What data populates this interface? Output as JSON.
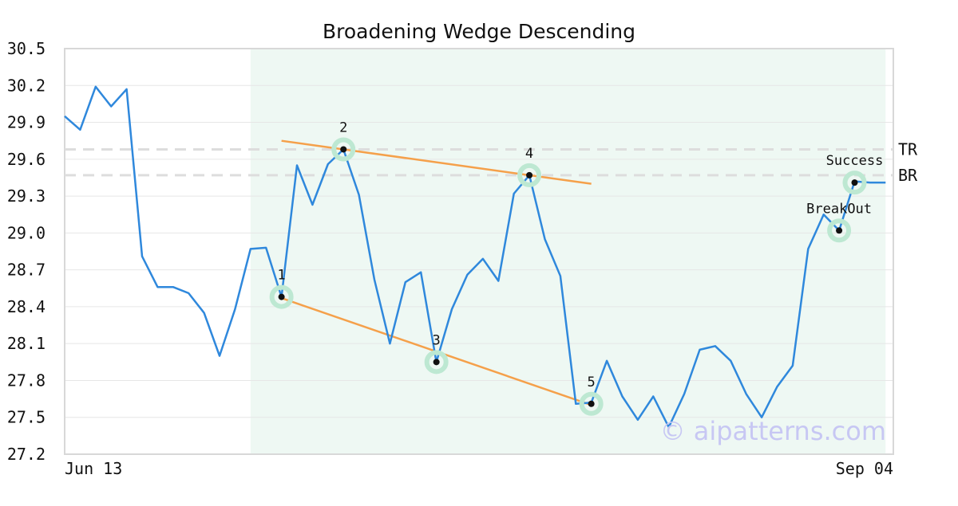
{
  "chart_data": {
    "type": "line",
    "title": "Broadening Wedge Descending",
    "xlabel": "",
    "ylabel": "",
    "ylim": [
      27.2,
      30.5
    ],
    "yticks": [
      "30.5",
      "30.2",
      "29.9",
      "29.6",
      "29.3",
      "29.0",
      "28.7",
      "28.4",
      "28.1",
      "27.8",
      "27.5",
      "27.2"
    ],
    "x_tick_labels": [
      "Jun 13",
      "Sep 04"
    ],
    "grid": "horizontal",
    "series": [
      {
        "values": [
          29.95,
          29.84,
          30.19,
          30.03,
          30.17,
          28.81,
          28.56,
          28.56,
          28.51,
          28.35,
          28.0,
          28.38,
          28.87,
          28.88,
          28.48,
          29.55,
          29.23,
          29.56,
          29.68,
          29.31,
          28.62,
          28.1,
          28.6,
          28.68,
          27.95,
          28.38,
          28.66,
          28.79,
          28.61,
          29.32,
          29.47,
          28.95,
          28.65,
          27.61,
          27.62,
          27.96,
          27.67,
          27.48,
          27.67,
          27.42,
          27.69,
          28.05,
          28.08,
          27.96,
          27.69,
          27.5,
          27.75,
          27.92,
          28.87,
          29.15,
          29.02,
          29.42,
          29.41,
          29.41
        ],
        "color": "#2f88dc"
      }
    ],
    "pattern_lines": [
      {
        "from": [
          14,
          29.75
        ],
        "to": [
          34,
          29.4
        ],
        "color": "#f5a04a"
      },
      {
        "from": [
          14,
          28.47
        ],
        "to": [
          34,
          27.6
        ],
        "color": "#f5a04a"
      }
    ],
    "reference_lines": [
      {
        "label": "TR",
        "value": 29.68
      },
      {
        "label": "BR",
        "value": 29.47
      }
    ],
    "highlight_region": {
      "from": 12,
      "to": 53,
      "color": "#eef8f3"
    },
    "markers": [
      {
        "label": "1",
        "x": 14,
        "y": 28.48
      },
      {
        "label": "2",
        "x": 18,
        "y": 29.68
      },
      {
        "label": "3",
        "x": 24,
        "y": 27.95
      },
      {
        "label": "4",
        "x": 30,
        "y": 29.47
      },
      {
        "label": "5",
        "x": 34,
        "y": 27.61
      },
      {
        "label": "BreakOut",
        "x": 50,
        "y": 29.02
      },
      {
        "label": "Success",
        "x": 51,
        "y": 29.41
      }
    ]
  },
  "watermark": "© aipatterns.com",
  "colors": {
    "line": "#2f88dc",
    "wedge": "#f5a04a",
    "marker_ring": "#bde8d2",
    "highlight": "#eef8f3",
    "grid": "#e6e6e6",
    "ref_line": "#dddddd"
  }
}
